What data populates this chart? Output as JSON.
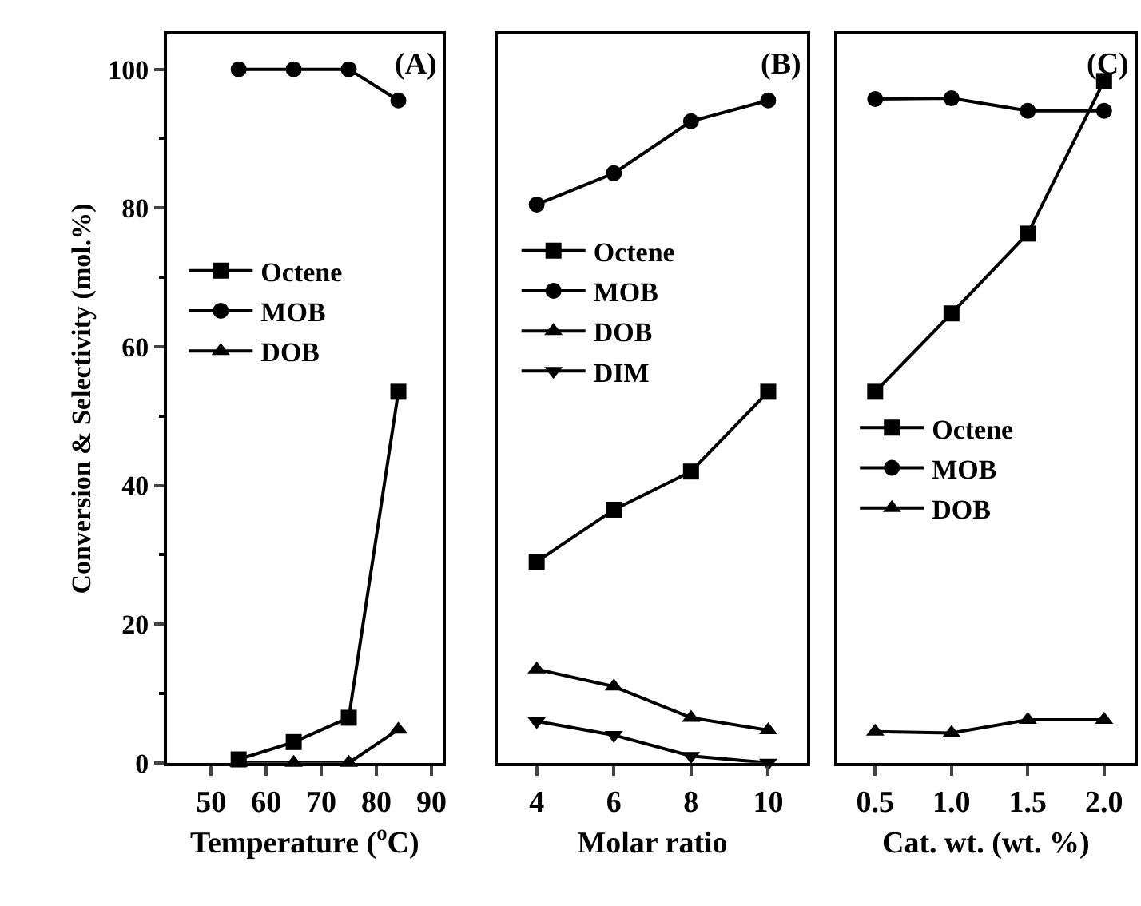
{
  "chart_data": [
    {
      "type": "line",
      "xlabel": "Temperature ($^{o}$C)",
      "ylabel": "Conversion & Selectivity (mol.%)",
      "annotations": [
        "(A)"
      ],
      "x": [
        55,
        65,
        75,
        84
      ],
      "xlim": [
        42,
        92
      ],
      "xticks": [
        50,
        60,
        70,
        80,
        90
      ],
      "ylim": [
        0,
        105
      ],
      "yticks": [
        0,
        20,
        40,
        60,
        80,
        100
      ],
      "legend": "left",
      "tick_labels": "xy",
      "series": [
        {
          "name": "Octene",
          "color": "#000000",
          "marker": "square",
          "values": [
            0.5,
            3,
            6.5,
            53.5
          ]
        },
        {
          "name": "MOB",
          "color": "#000000",
          "marker": "circle",
          "values": [
            100,
            100,
            100,
            95.5
          ]
        },
        {
          "name": "DOB",
          "color": "#000000",
          "marker": "triangle",
          "values": [
            0,
            0,
            0,
            4.8
          ]
        }
      ]
    },
    {
      "type": "line",
      "xlabel": "Molar ratio",
      "annotations": [
        "(B)"
      ],
      "x": [
        4,
        6,
        8,
        10
      ],
      "xlim": [
        3,
        11
      ],
      "xticks": [
        4,
        6,
        8,
        10
      ],
      "ylim": [
        0,
        105
      ],
      "legend": "left",
      "tick_labels": "x",
      "series": [
        {
          "name": "Octene",
          "color": "#000000",
          "marker": "square",
          "values": [
            29,
            36.5,
            42,
            53.5
          ]
        },
        {
          "name": "MOB",
          "color": "#000000",
          "marker": "circle",
          "values": [
            80.5,
            85,
            92.5,
            95.5
          ]
        },
        {
          "name": "DOB",
          "color": "#000000",
          "marker": "triangle",
          "values": [
            13.5,
            11,
            6.5,
            4.7
          ]
        },
        {
          "name": "DIM",
          "color": "#000000",
          "marker": "triangle-down",
          "values": [
            6,
            4,
            1,
            0
          ]
        }
      ]
    },
    {
      "type": "line",
      "xlabel": "Cat. wt. (wt. %)",
      "annotations": [
        "(C)"
      ],
      "x": [
        0.5,
        1.0,
        1.5,
        2.0
      ],
      "xlim": [
        0.25,
        2.2
      ],
      "xticks": [
        {
          "value": 0.5,
          "label": "0.5"
        },
        {
          "value": 1.0,
          "label": "1.0"
        },
        {
          "value": 1.5,
          "label": "1.5"
        },
        {
          "value": 2.0,
          "label": "2.0"
        }
      ],
      "ylim": [
        0,
        105
      ],
      "legend": "bottom left",
      "tick_labels": "x",
      "series": [
        {
          "name": "Octene",
          "color": "#000000",
          "marker": "square",
          "values": [
            53.5,
            64.8,
            76.3,
            98.3
          ]
        },
        {
          "name": "MOB",
          "color": "#000000",
          "marker": "circle",
          "values": [
            95.7,
            95.8,
            94,
            94
          ]
        },
        {
          "name": "DOB",
          "color": "#000000",
          "marker": "triangle",
          "values": [
            4.5,
            4.3,
            6.2,
            6.2
          ]
        }
      ]
    }
  ]
}
